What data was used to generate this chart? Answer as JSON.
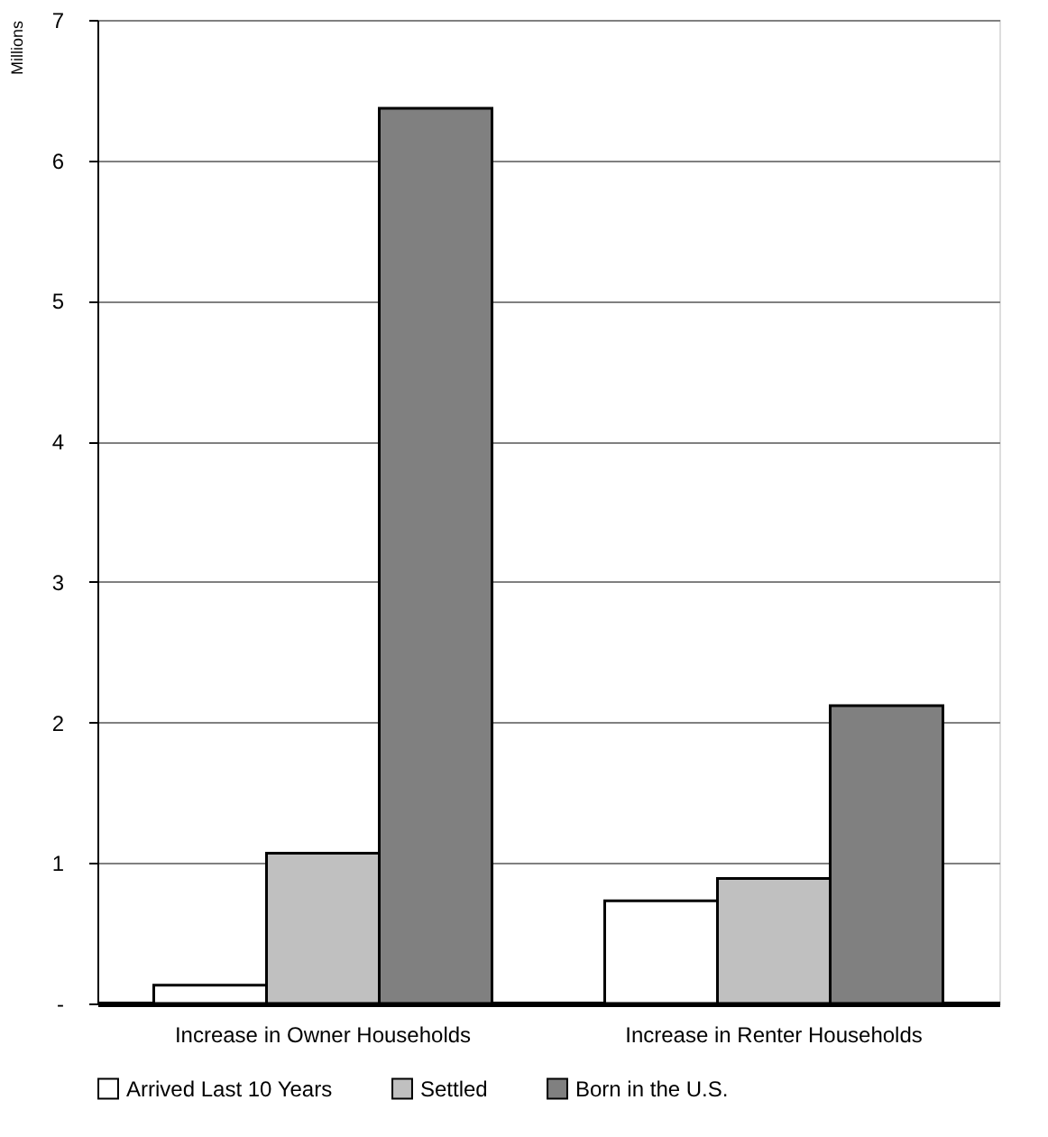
{
  "chart_data": {
    "type": "bar",
    "ylabel": "Millions",
    "categories": [
      "Increase in Owner Households",
      "Increase in Renter Households"
    ],
    "series": [
      {
        "name": "Arrived Last 10 Years",
        "color": "#ffffff",
        "values": [
          0.13,
          0.73
        ]
      },
      {
        "name": "Settled",
        "color": "#c0c0c0",
        "values": [
          1.07,
          0.89
        ]
      },
      {
        "name": "Born in the U.S.",
        "color": "#808080",
        "values": [
          6.37,
          2.12
        ]
      }
    ],
    "ylim": [
      0,
      7
    ],
    "yticks": [
      {
        "value": 0,
        "label": "-"
      },
      1,
      2,
      3,
      4,
      5,
      6,
      7
    ],
    "grid": "y",
    "legend": "bottom"
  }
}
